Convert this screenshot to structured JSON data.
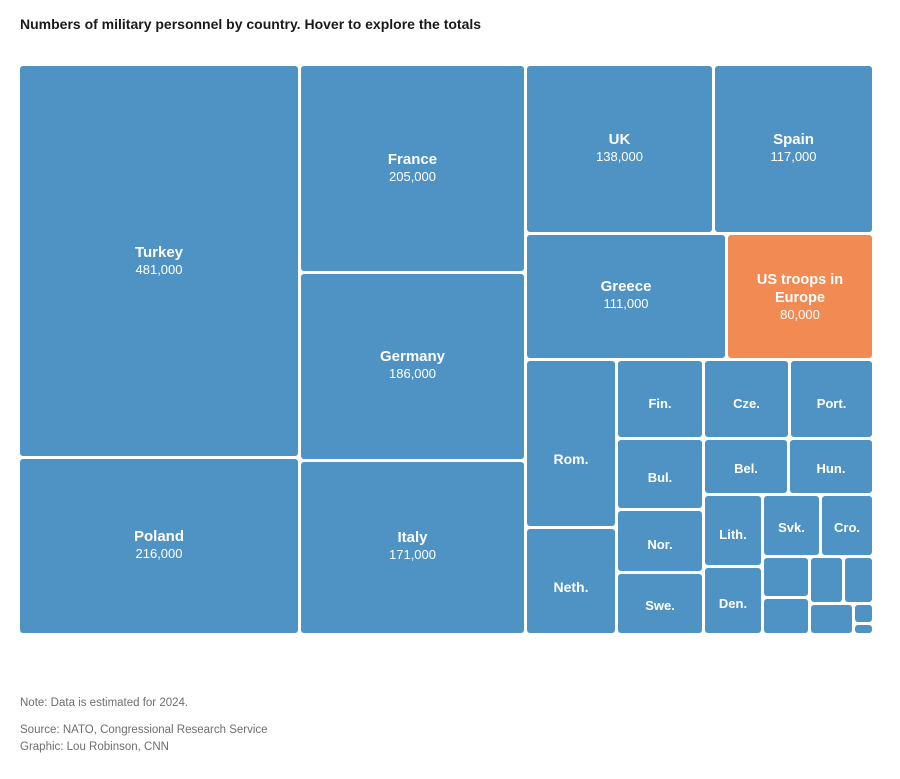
{
  "title": "Numbers of military personnel by country. Hover to explore the totals",
  "chart_data": {
    "type": "treemap",
    "colors": {
      "default": "#4f92c4",
      "highlight": "#f28a53"
    },
    "tiles": [
      {
        "name": "Turkey",
        "value": "481,000"
      },
      {
        "name": "Poland",
        "value": "216,000"
      },
      {
        "name": "France",
        "value": "205,000"
      },
      {
        "name": "Germany",
        "value": "186,000"
      },
      {
        "name": "Italy",
        "value": "171,000"
      },
      {
        "name": "UK",
        "value": "138,000"
      },
      {
        "name": "Spain",
        "value": "117,000"
      },
      {
        "name": "Greece",
        "value": "111,000"
      },
      {
        "name": "US troops in Europe",
        "value": "80,000",
        "highlight": true
      },
      {
        "name": "Rom."
      },
      {
        "name": "Neth."
      },
      {
        "name": "Fin."
      },
      {
        "name": "Bul."
      },
      {
        "name": "Nor."
      },
      {
        "name": "Swe."
      },
      {
        "name": "Cze."
      },
      {
        "name": "Port."
      },
      {
        "name": "Bel."
      },
      {
        "name": "Hun."
      },
      {
        "name": "Lith."
      },
      {
        "name": "Svk."
      },
      {
        "name": "Cro."
      },
      {
        "name": "Den."
      },
      {
        "name": ""
      },
      {
        "name": ""
      },
      {
        "name": ""
      },
      {
        "name": ""
      },
      {
        "name": ""
      },
      {
        "name": ""
      },
      {
        "name": ""
      }
    ]
  },
  "footer": {
    "note": "Note: Data is estimated for 2024.",
    "source": "Source: NATO, Congressional Research Service",
    "graphic": "Graphic: Lou Robinson, CNN"
  }
}
